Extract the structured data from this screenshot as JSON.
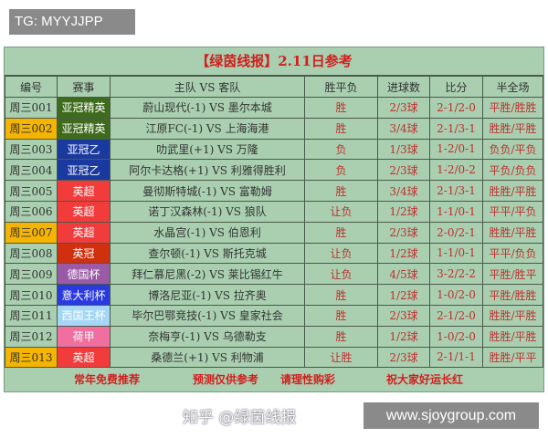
{
  "tg_label": "TG: MYYJJPP",
  "title": "【绿茵线报】2.11日参考",
  "headers": [
    "编号",
    "赛事",
    "主队 VS 客队",
    "胜平负",
    "进球数",
    "比分",
    "半全场"
  ],
  "rows": [
    {
      "id": "周三001",
      "event": "亚冠精英",
      "event_color": "#3e6b1c",
      "match": "蔚山现代(-1) VS 墨尔本城",
      "result": "胜",
      "goals": "2/3球",
      "score": "2-1/2-0",
      "halffull": "平胜/胜胜",
      "highlight": false
    },
    {
      "id": "周三002",
      "event": "亚冠精英",
      "event_color": "#3e6b1c",
      "match": "江原FC(-1) VS 上海海港",
      "result": "胜",
      "goals": "3/4球",
      "score": "2-1/3-1",
      "halffull": "胜胜/平胜",
      "highlight": true
    },
    {
      "id": "周三003",
      "event": "亚冠乙",
      "event_color": "#1a3aa0",
      "match": "叻武里(+1) VS 万隆",
      "result": "负",
      "goals": "1/3球",
      "score": "1-2/0-1",
      "halffull": "负负/平负",
      "highlight": false
    },
    {
      "id": "周三004",
      "event": "亚冠乙",
      "event_color": "#1a3aa0",
      "match": "阿尔卡达格(+1) VS 利雅得胜利",
      "result": "负",
      "goals": "2/3球",
      "score": "1-2/0-2",
      "halffull": "平负/负负",
      "highlight": false
    },
    {
      "id": "周三005",
      "event": "英超",
      "event_color": "#f23c3c",
      "match": "曼彻斯特城(-1) VS 富勒姆",
      "result": "胜",
      "goals": "3/4球",
      "score": "2-1/3-1",
      "halffull": "胜胜/平胜",
      "highlight": false
    },
    {
      "id": "周三006",
      "event": "英超",
      "event_color": "#f23c3c",
      "match": "诺丁汉森林(-1) VS 狼队",
      "result": "让负",
      "goals": "1/2球",
      "score": "1-1/0-1",
      "halffull": "平平/平负",
      "highlight": false
    },
    {
      "id": "周三007",
      "event": "英超",
      "event_color": "#f23c3c",
      "match": "水晶宫(-1) VS 伯恩利",
      "result": "胜",
      "goals": "2/3球",
      "score": "2-0/2-1",
      "halffull": "胜胜/平胜",
      "highlight": true
    },
    {
      "id": "周三008",
      "event": "英冠",
      "event_color": "#d0300e",
      "match": "查尔顿(-1) VS 斯托克城",
      "result": "让负",
      "goals": "1/2球",
      "score": "1-1/0-1",
      "halffull": "平平/负负",
      "highlight": false
    },
    {
      "id": "周三009",
      "event": "德国杯",
      "event_color": "#9a5aa6",
      "match": "拜仁慕尼黑(-2) VS 莱比锡红牛",
      "result": "让负",
      "goals": "4/5球",
      "score": "3-2/2-2",
      "halffull": "平胜/胜平",
      "highlight": false
    },
    {
      "id": "周三010",
      "event": "意大利杯",
      "event_color": "#2a3ae0",
      "match": "博洛尼亚(-1) VS 拉齐奥",
      "result": "胜",
      "goals": "1/2球",
      "score": "1-0/2-0",
      "halffull": "平胜/胜胜",
      "highlight": false
    },
    {
      "id": "周三011",
      "event": "西国王杯",
      "event_color": "#a6d6f6",
      "match": "毕尔巴鄂竞技(-1) VS 皇家社会",
      "result": "胜",
      "goals": "2/3球",
      "score": "2-1/2-0",
      "halffull": "胜胜/平胜",
      "highlight": false
    },
    {
      "id": "周三012",
      "event": "荷甲",
      "event_color": "#f06ea0",
      "match": "奈梅亨(-1) VS 乌德勒支",
      "result": "胜",
      "goals": "1/2球",
      "score": "1-0/2-0",
      "halffull": "胜胜/平胜",
      "highlight": false
    },
    {
      "id": "周三013",
      "event": "英超",
      "event_color": "#f23c3c",
      "match": "桑德兰(+1) VS 利物浦",
      "result": "让胜",
      "goals": "2/3球",
      "score": "2-1/1-1",
      "halffull": "胜胜/平平",
      "highlight": true
    }
  ],
  "footer": [
    "常年免费推荐",
    "预测仅供参考",
    "请理性购彩",
    "祝大家好运长红"
  ],
  "watermark": "知乎 @绿茵线报",
  "site": "www.sjoygroup.com"
}
